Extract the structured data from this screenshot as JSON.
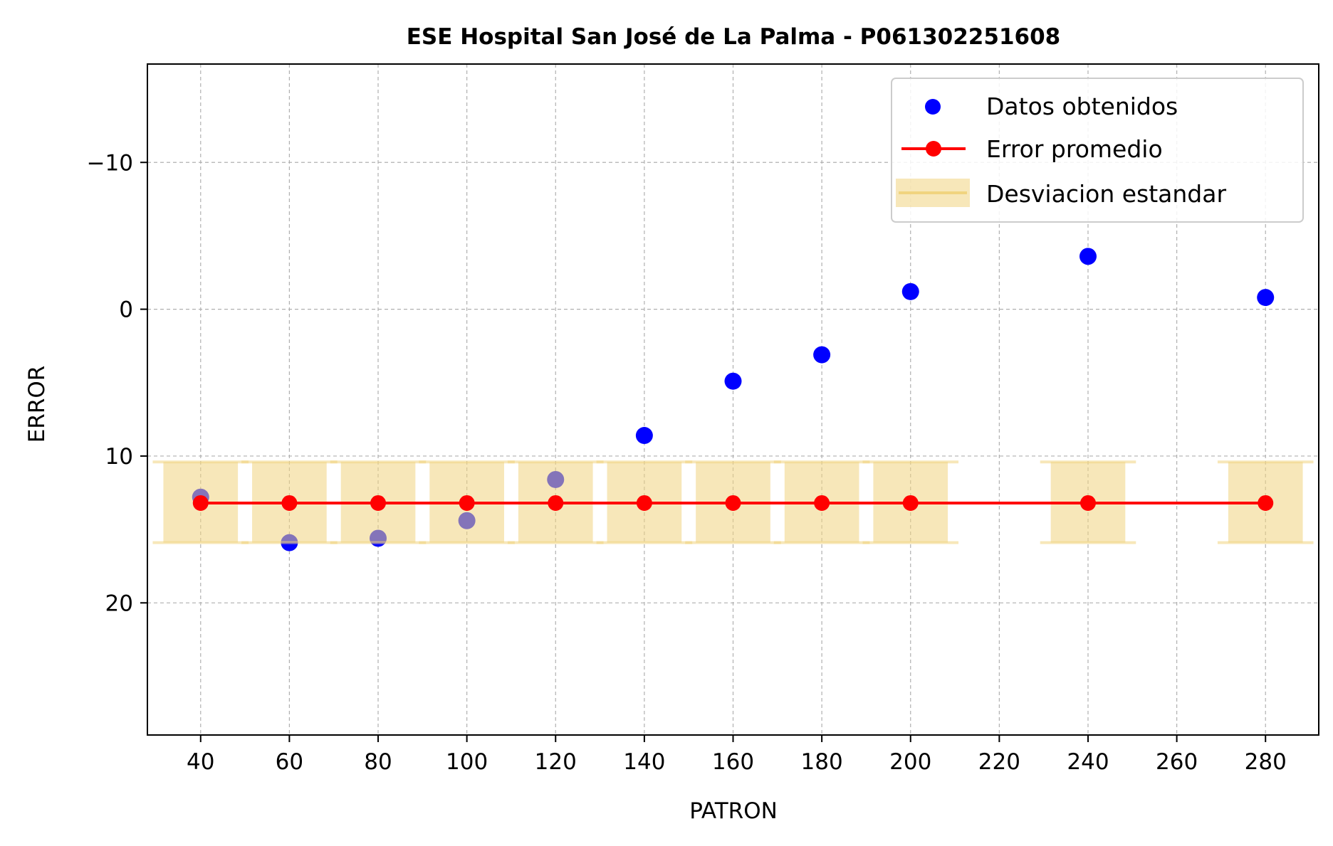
{
  "chart_data": {
    "type": "scatter",
    "title": "ESE Hospital San José de La Palma - P061302251608",
    "xlabel": "PATRON",
    "ylabel": "ERROR",
    "xlim": [
      28,
      292
    ],
    "ylim": [
      29,
      -16.7
    ],
    "y_inverted": true,
    "x_ticks": [
      40,
      60,
      80,
      100,
      120,
      140,
      160,
      180,
      200,
      220,
      240,
      260,
      280
    ],
    "y_ticks": [
      -10,
      0,
      10,
      20
    ],
    "y_tick_labels": [
      "−10",
      "0",
      "10",
      "20"
    ],
    "grid": true,
    "legend_position": "top-right",
    "legend": {
      "scatter_label": "Datos obtenidos",
      "line_label": "Error promedio",
      "band_label": "Desviacion estandar"
    },
    "series": [
      {
        "name": "Datos obtenidos",
        "kind": "scatter",
        "color": "#0000ff",
        "x": [
          40,
          60,
          80,
          100,
          120,
          140,
          160,
          180,
          200,
          240,
          280
        ],
        "y": [
          12.8,
          15.9,
          15.6,
          14.4,
          11.6,
          8.6,
          4.9,
          3.1,
          -1.2,
          -3.6,
          -0.8
        ]
      },
      {
        "name": "Error promedio",
        "kind": "line",
        "color": "#ff0000",
        "x": [
          40,
          60,
          80,
          100,
          120,
          140,
          160,
          180,
          200,
          240,
          280
        ],
        "y": [
          13.2,
          13.2,
          13.2,
          13.2,
          13.2,
          13.2,
          13.2,
          13.2,
          13.2,
          13.2,
          13.2
        ]
      },
      {
        "name": "Desviacion estandar",
        "kind": "band",
        "color": "#f0d47f",
        "x": [
          40,
          60,
          80,
          100,
          120,
          140,
          160,
          180,
          200,
          240,
          280
        ],
        "lower": [
          10.4,
          10.4,
          10.4,
          10.4,
          10.4,
          10.4,
          10.4,
          10.4,
          10.4,
          10.4,
          10.4
        ],
        "upper": [
          15.9,
          15.9,
          15.9,
          15.9,
          15.9,
          15.9,
          15.9,
          15.9,
          15.9,
          15.9,
          15.9
        ]
      }
    ]
  }
}
